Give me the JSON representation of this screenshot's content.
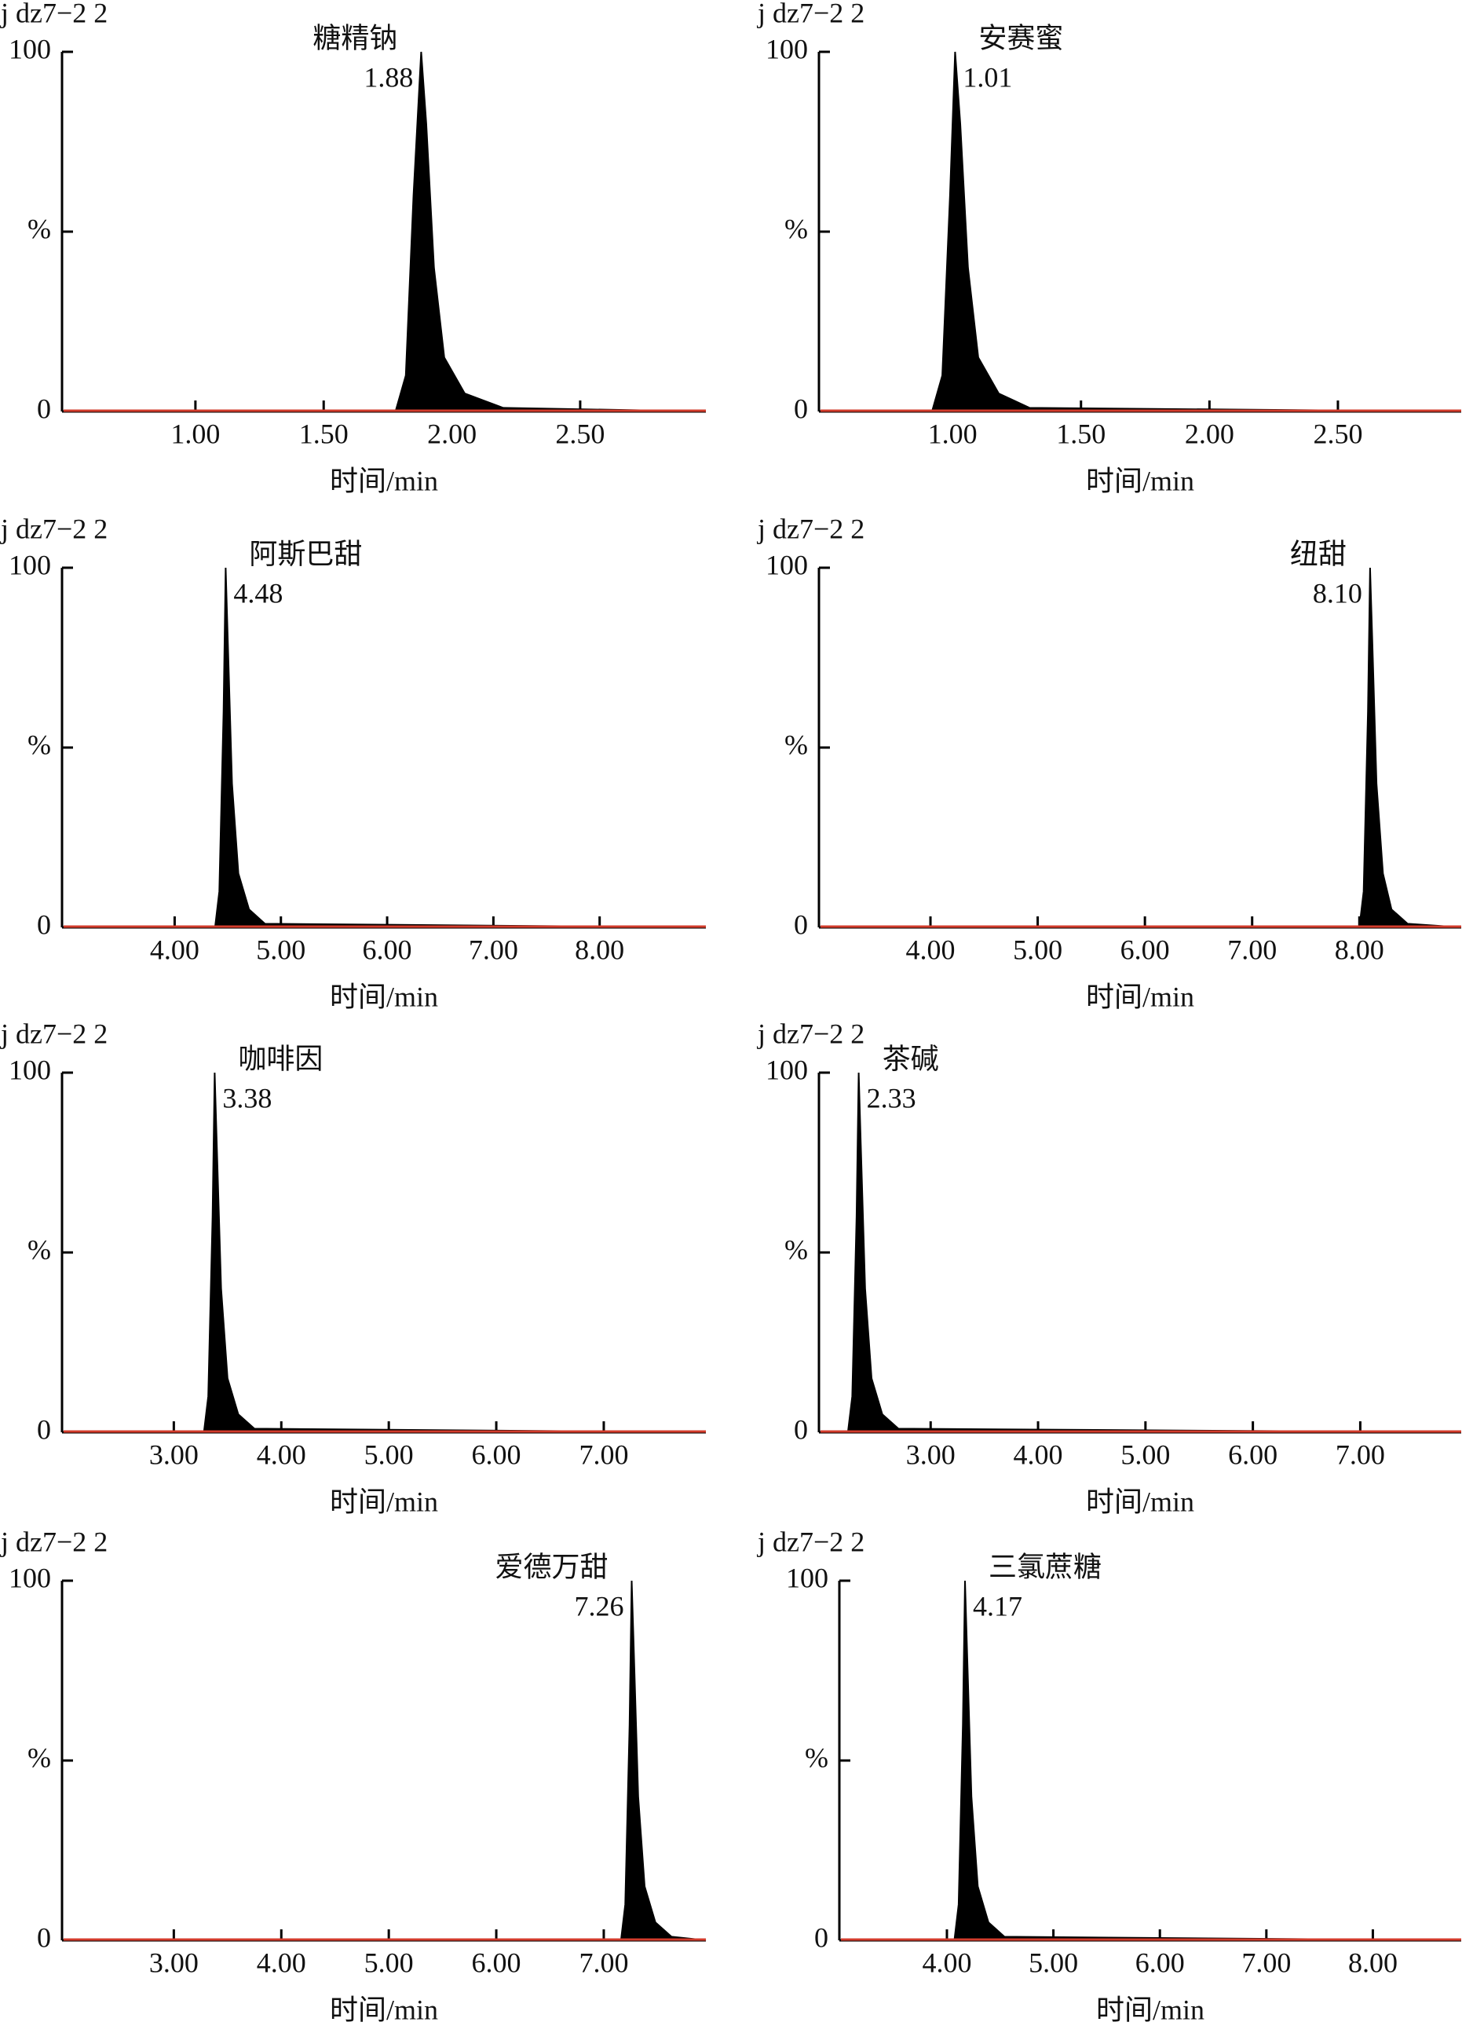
{
  "chart_data": [
    {
      "type": "area",
      "title": "j dz7−2 2",
      "xlabel": "时间/min",
      "xlim": [
        0.48,
        2.99
      ],
      "xticks": [
        {
          "value": 1,
          "label": "1.00"
        },
        {
          "value": 1.5,
          "label": "1.50"
        },
        {
          "value": 2,
          "label": "2.00"
        },
        {
          "value": 2.5,
          "label": "2.50"
        }
      ],
      "ylim": [
        0,
        100
      ],
      "yticks": [
        0,
        {
          "value": 50,
          "label": "%"
        },
        100
      ],
      "color": "#000000",
      "baseline_color": "#d23b2b",
      "x": [
        0.48,
        1.78,
        1.82,
        1.85,
        1.88,
        1.9,
        1.93,
        1.97,
        2.05,
        2.2,
        2.99
      ],
      "values": [
        0,
        0,
        10,
        60,
        100,
        80,
        40,
        15,
        5,
        1,
        0
      ],
      "peak": {
        "name": "糖精钠",
        "rt": 1.88,
        "rt_label": "1.88"
      }
    },
    {
      "type": "area",
      "title": "j dz7−2 2",
      "xlabel": "时间/min",
      "xlim": [
        0.48,
        2.98
      ],
      "xticks": [
        {
          "value": 1,
          "label": "1.00"
        },
        {
          "value": 1.5,
          "label": "1.50"
        },
        {
          "value": 2,
          "label": "2.00"
        },
        {
          "value": 2.5,
          "label": "2.50"
        }
      ],
      "ylim": [
        0,
        100
      ],
      "yticks": [
        0,
        {
          "value": 50,
          "label": "%"
        },
        100
      ],
      "color": "#000000",
      "baseline_color": "#d23b2b",
      "x": [
        0.48,
        0.92,
        0.96,
        0.99,
        1.01,
        1.03,
        1.06,
        1.1,
        1.18,
        1.3,
        2.98
      ],
      "values": [
        0,
        0,
        10,
        60,
        100,
        80,
        40,
        15,
        5,
        1,
        0
      ],
      "peak": {
        "name": "安赛蜜",
        "rt": 1.01,
        "rt_label": "1.01"
      }
    },
    {
      "type": "area",
      "title": "j dz7−2 2",
      "xlabel": "时间/min",
      "xlim": [
        2.94,
        9.0
      ],
      "xticks": [
        {
          "value": 4,
          "label": "4.00"
        },
        {
          "value": 5,
          "label": "5.00"
        },
        {
          "value": 6,
          "label": "6.00"
        },
        {
          "value": 7,
          "label": "7.00"
        },
        {
          "value": 8,
          "label": "8.00"
        }
      ],
      "ylim": [
        0,
        100
      ],
      "yticks": [
        0,
        {
          "value": 50,
          "label": "%"
        },
        100
      ],
      "color": "#000000",
      "baseline_color": "#d23b2b",
      "x": [
        2.94,
        4.38,
        4.42,
        4.46,
        4.48,
        4.5,
        4.54,
        4.6,
        4.7,
        4.85,
        9.0
      ],
      "values": [
        0,
        0,
        10,
        60,
        100,
        80,
        40,
        15,
        5,
        1,
        0
      ],
      "peak": {
        "name": "阿斯巴甜",
        "rt": 4.48,
        "rt_label": "4.48"
      }
    },
    {
      "type": "area",
      "title": "j dz7−2 2",
      "xlabel": "时间/min",
      "xlim": [
        2.96,
        8.95
      ],
      "xticks": [
        {
          "value": 4,
          "label": "4.00"
        },
        {
          "value": 5,
          "label": "5.00"
        },
        {
          "value": 6,
          "label": "6.00"
        },
        {
          "value": 7,
          "label": "7.00"
        },
        {
          "value": 8,
          "label": "8.00"
        }
      ],
      "ylim": [
        0,
        100
      ],
      "yticks": [
        0,
        {
          "value": 50,
          "label": "%"
        },
        100
      ],
      "color": "#000000",
      "baseline_color": "#d23b2b",
      "x": [
        2.96,
        8.0,
        8.04,
        8.08,
        8.1,
        8.12,
        8.16,
        8.22,
        8.3,
        8.45,
        8.95
      ],
      "values": [
        0,
        0,
        10,
        60,
        100,
        80,
        40,
        15,
        5,
        1,
        0
      ],
      "peak": {
        "name": "纽甜",
        "rt": 8.1,
        "rt_label": "8.10"
      }
    },
    {
      "type": "area",
      "title": "j dz7−2 2",
      "xlabel": "时间/min",
      "xlim": [
        1.96,
        7.95
      ],
      "xticks": [
        {
          "value": 3,
          "label": "3.00"
        },
        {
          "value": 4,
          "label": "4.00"
        },
        {
          "value": 5,
          "label": "5.00"
        },
        {
          "value": 6,
          "label": "6.00"
        },
        {
          "value": 7,
          "label": "7.00"
        }
      ],
      "ylim": [
        0,
        100
      ],
      "yticks": [
        0,
        {
          "value": 50,
          "label": "%"
        },
        100
      ],
      "color": "#000000",
      "baseline_color": "#d23b2b",
      "x": [
        1.96,
        3.28,
        3.32,
        3.36,
        3.38,
        3.4,
        3.44,
        3.5,
        3.6,
        3.75,
        7.95
      ],
      "values": [
        0,
        0,
        10,
        60,
        100,
        80,
        40,
        15,
        5,
        1,
        0
      ],
      "peak": {
        "name": "咖啡因",
        "rt": 3.38,
        "rt_label": "3.38"
      }
    },
    {
      "type": "area",
      "title": "j dz7−2 2",
      "xlabel": "时间/min",
      "xlim": [
        1.96,
        7.94
      ],
      "xticks": [
        {
          "value": 3,
          "label": "3.00"
        },
        {
          "value": 4,
          "label": "4.00"
        },
        {
          "value": 5,
          "label": "5.00"
        },
        {
          "value": 6,
          "label": "6.00"
        },
        {
          "value": 7,
          "label": "7.00"
        }
      ],
      "ylim": [
        0,
        100
      ],
      "yticks": [
        0,
        {
          "value": 50,
          "label": "%"
        },
        100
      ],
      "color": "#000000",
      "baseline_color": "#d23b2b",
      "x": [
        1.96,
        2.23,
        2.27,
        2.31,
        2.33,
        2.35,
        2.39,
        2.45,
        2.55,
        2.7,
        7.94
      ],
      "values": [
        0,
        0,
        10,
        60,
        100,
        80,
        40,
        15,
        5,
        1,
        0
      ],
      "peak": {
        "name": "茶碱",
        "rt": 2.33,
        "rt_label": "2.33"
      }
    },
    {
      "type": "area",
      "title": "j dz7−2 2",
      "xlabel": "时间/min",
      "xlim": [
        1.96,
        7.95
      ],
      "xticks": [
        {
          "value": 3,
          "label": "3.00"
        },
        {
          "value": 4,
          "label": "4.00"
        },
        {
          "value": 5,
          "label": "5.00"
        },
        {
          "value": 6,
          "label": "6.00"
        },
        {
          "value": 7,
          "label": "7.00"
        }
      ],
      "ylim": [
        0,
        100
      ],
      "yticks": [
        0,
        {
          "value": 50,
          "label": "%"
        },
        100
      ],
      "color": "#000000",
      "baseline_color": "#d23b2b",
      "x": [
        1.96,
        7.16,
        7.2,
        7.24,
        7.26,
        7.28,
        7.32,
        7.38,
        7.48,
        7.63,
        7.95
      ],
      "values": [
        0,
        0,
        10,
        60,
        100,
        80,
        40,
        15,
        5,
        1,
        0
      ],
      "peak": {
        "name": "爱德万甜",
        "rt": 7.26,
        "rt_label": "7.26"
      }
    },
    {
      "type": "area",
      "title": "j dz7−2 2",
      "xlabel": "时间/min",
      "xlim": [
        2.99,
        8.83
      ],
      "xticks": [
        {
          "value": 4,
          "label": "4.00"
        },
        {
          "value": 5,
          "label": "5.00"
        },
        {
          "value": 6,
          "label": "6.00"
        },
        {
          "value": 7,
          "label": "7.00"
        },
        {
          "value": 8,
          "label": "8.00"
        }
      ],
      "ylim": [
        0,
        100
      ],
      "yticks": [
        0,
        {
          "value": 50,
          "label": "%"
        },
        100
      ],
      "color": "#000000",
      "baseline_color": "#d23b2b",
      "x": [
        2.99,
        4.07,
        4.11,
        4.15,
        4.17,
        4.19,
        4.23,
        4.29,
        4.39,
        4.54,
        8.83
      ],
      "values": [
        0,
        0,
        10,
        60,
        100,
        80,
        40,
        15,
        5,
        1,
        0
      ],
      "peak": {
        "name": "三氯蔗糖",
        "rt": 4.17,
        "rt_label": "4.17"
      }
    }
  ]
}
